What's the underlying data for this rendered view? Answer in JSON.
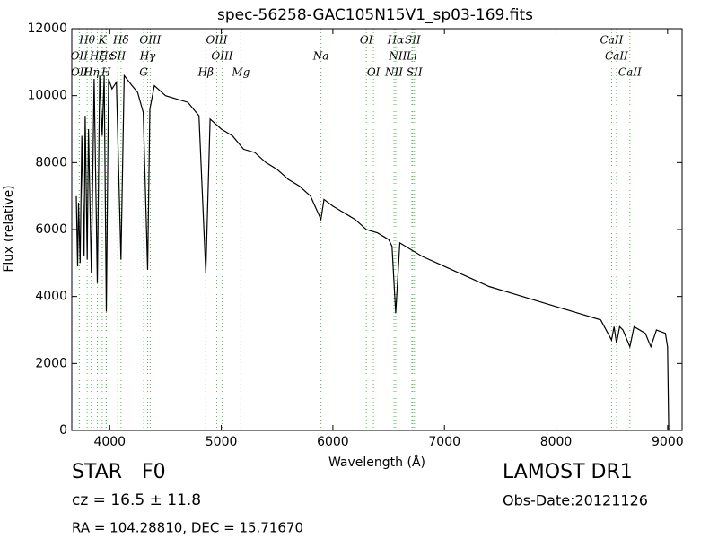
{
  "chart_data": {
    "type": "line",
    "title": "spec-56258-GAC105N15V1_sp03-169.fits",
    "x_label": "Wavelength (Å)",
    "y_label": "Flux (relative)",
    "x": [
      3700,
      3712,
      3720,
      3735,
      3750,
      3770,
      3780,
      3798,
      3810,
      3835,
      3860,
      3889,
      3910,
      3933,
      3950,
      3970,
      3990,
      4020,
      4060,
      4101,
      4130,
      4200,
      4250,
      4300,
      4340,
      4360,
      4400,
      4500,
      4600,
      4700,
      4800,
      4861,
      4900,
      5000,
      5100,
      5200,
      5300,
      5400,
      5500,
      5600,
      5700,
      5800,
      5893,
      5920,
      6000,
      6100,
      6200,
      6300,
      6400,
      6500,
      6530,
      6563,
      6600,
      6700,
      6800,
      7000,
      7200,
      7400,
      7600,
      7800,
      8000,
      8200,
      8400,
      8498,
      8520,
      8542,
      8570,
      8600,
      8662,
      8700,
      8800,
      8850,
      8900,
      8980,
      9000,
      9010
    ],
    "values": [
      7000,
      4900,
      6800,
      5000,
      8800,
      5200,
      9400,
      5100,
      9000,
      4700,
      10500,
      4400,
      10600,
      8800,
      10600,
      3550,
      10500,
      10200,
      10400,
      5100,
      10600,
      10300,
      10100,
      9500,
      4800,
      9600,
      10300,
      10000,
      9900,
      9800,
      9400,
      4700,
      9300,
      9000,
      8800,
      8400,
      8300,
      8000,
      7800,
      7500,
      7300,
      7000,
      6300,
      6900,
      6700,
      6500,
      6300,
      6000,
      5900,
      5700,
      5500,
      3500,
      5600,
      5400,
      5200,
      4900,
      4600,
      4300,
      4100,
      3900,
      3700,
      3500,
      3300,
      2700,
      3100,
      2600,
      3100,
      3000,
      2500,
      3100,
      2900,
      2500,
      3000,
      2900,
      2500,
      0
    ],
    "color": "#000000",
    "xlim": [
      3660,
      9130
    ],
    "ylim": [
      0,
      12000
    ],
    "xticks": [
      4000,
      5000,
      6000,
      7000,
      8000,
      9000
    ],
    "yticks": [
      0,
      2000,
      4000,
      6000,
      8000,
      10000,
      12000
    ],
    "line_color": "#55bb55",
    "spectral_lines": [
      [
        {
          "wavelength": 3798,
          "label": "Hθ"
        },
        {
          "wavelength": 3933,
          "label": "K"
        },
        {
          "wavelength": 4101,
          "label": "Hδ"
        },
        {
          "wavelength": 4363,
          "label": "OIII"
        },
        {
          "wavelength": 4959,
          "label": "OIII"
        },
        {
          "wavelength": 6300,
          "label": "OI"
        },
        {
          "wavelength": 6563,
          "label": "Hα"
        },
        {
          "wavelength": 6716,
          "label": "SII"
        },
        {
          "wavelength": 8498,
          "label": "CaII"
        }
      ],
      [
        {
          "wavelength": 3727,
          "label": "OII"
        },
        {
          "wavelength": 3889,
          "label": "Hζ"
        },
        {
          "wavelength": 3970,
          "label": "Hε"
        },
        {
          "wavelength": 4072,
          "label": "SII"
        },
        {
          "wavelength": 4340,
          "label": "Hγ"
        },
        {
          "wavelength": 5007,
          "label": "OIII"
        },
        {
          "wavelength": 5893,
          "label": "Na"
        },
        {
          "wavelength": 6583,
          "label": "NII"
        },
        {
          "wavelength": 6708,
          "label": "Li"
        },
        {
          "wavelength": 8542,
          "label": "CaII"
        }
      ],
      [
        {
          "wavelength": 3729,
          "label": "OII"
        },
        {
          "wavelength": 3835,
          "label": "Hη"
        },
        {
          "wavelength": 3968,
          "label": "H"
        },
        {
          "wavelength": 4304,
          "label": "G"
        },
        {
          "wavelength": 4861,
          "label": "Hβ"
        },
        {
          "wavelength": 5175,
          "label": "Mg"
        },
        {
          "wavelength": 6364,
          "label": "OI"
        },
        {
          "wavelength": 6548,
          "label": "NII"
        },
        {
          "wavelength": 6731,
          "label": "SII"
        },
        {
          "wavelength": 8662,
          "label": "CaII"
        }
      ]
    ],
    "object_class": "STAR",
    "subclass": "F0",
    "redshift": "cz = 16.5  ± 11.8",
    "coordinates": "RA = 104.28810, DEC = 15.71670",
    "survey": "LAMOST DR1",
    "obs_date": "Obs-Date:20121126"
  }
}
